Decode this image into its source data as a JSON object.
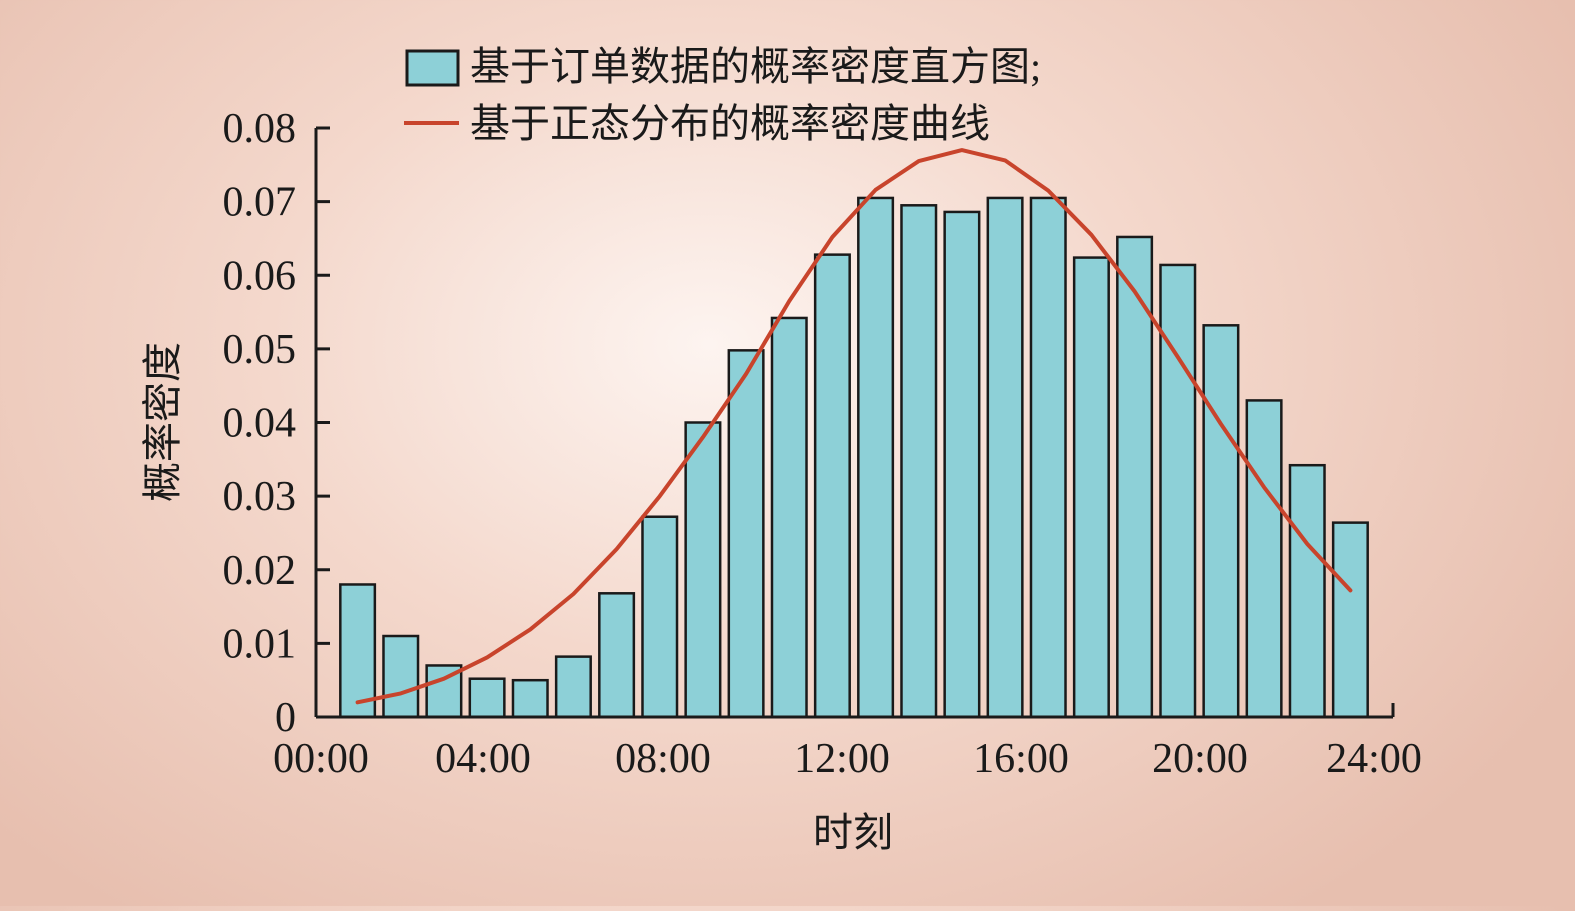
{
  "chart_data": {
    "type": "bar",
    "xlabel": "时刻",
    "ylabel": "概率密度",
    "ylim": [
      0,
      0.08
    ],
    "xlim": [
      0,
      24
    ],
    "y_ticks": [
      "0",
      "0.01",
      "0.02",
      "0.03",
      "0.04",
      "0.05",
      "0.06",
      "0.07",
      "0.08"
    ],
    "y_tick_values": [
      0,
      0.01,
      0.02,
      0.03,
      0.04,
      0.05,
      0.06,
      0.07,
      0.08
    ],
    "x_ticks": [
      "00:00",
      "04:00",
      "08:00",
      "12:00",
      "16:00",
      "20:00",
      "24:00"
    ],
    "x_tick_values": [
      0,
      4,
      8,
      12,
      16,
      20,
      24
    ],
    "legend_placement": "top-center",
    "grid": false,
    "colors": {
      "bar_fill": "#8dd0d7",
      "bar_stroke": "#1a1a1a",
      "line": "#c8442c",
      "axis": "#1a1a1a"
    },
    "series": [
      {
        "name": "基于订单数据的概率密度直方图;",
        "kind": "bar",
        "x": [
          0.5,
          1.5,
          2.5,
          3.5,
          4.5,
          5.5,
          6.5,
          7.5,
          8.5,
          9.5,
          10.5,
          11.5,
          12.5,
          13.5,
          14.5,
          15.5,
          16.5,
          17.5,
          18.5,
          19.5,
          20.5,
          21.5,
          22.5,
          23.5
        ],
        "values": [
          0.018,
          0.011,
          0.007,
          0.0052,
          0.005,
          0.0082,
          0.0168,
          0.0272,
          0.04,
          0.0498,
          0.0542,
          0.0628,
          0.0705,
          0.0695,
          0.0686,
          0.0705,
          0.0705,
          0.0624,
          0.0652,
          0.0614,
          0.0532,
          0.043,
          0.0342,
          0.0264
        ]
      },
      {
        "name": "基于正态分布的概率密度曲线",
        "kind": "line",
        "x": [
          0.5,
          1.5,
          2.5,
          3.5,
          4.5,
          5.5,
          6.5,
          7.5,
          8.5,
          9.5,
          10.5,
          11.5,
          12.5,
          13.5,
          14.5,
          15.5,
          16.5,
          17.5,
          18.5,
          19.5,
          20.5,
          21.5,
          22.5,
          23.5
        ],
        "values": [
          0.002,
          0.0032,
          0.0052,
          0.0081,
          0.0119,
          0.0167,
          0.0228,
          0.03,
          0.038,
          0.0466,
          0.0565,
          0.0652,
          0.0716,
          0.0755,
          0.077,
          0.0756,
          0.0715,
          0.0655,
          0.0578,
          0.0489,
          0.0398,
          0.0312,
          0.0235,
          0.0172
        ]
      }
    ]
  }
}
